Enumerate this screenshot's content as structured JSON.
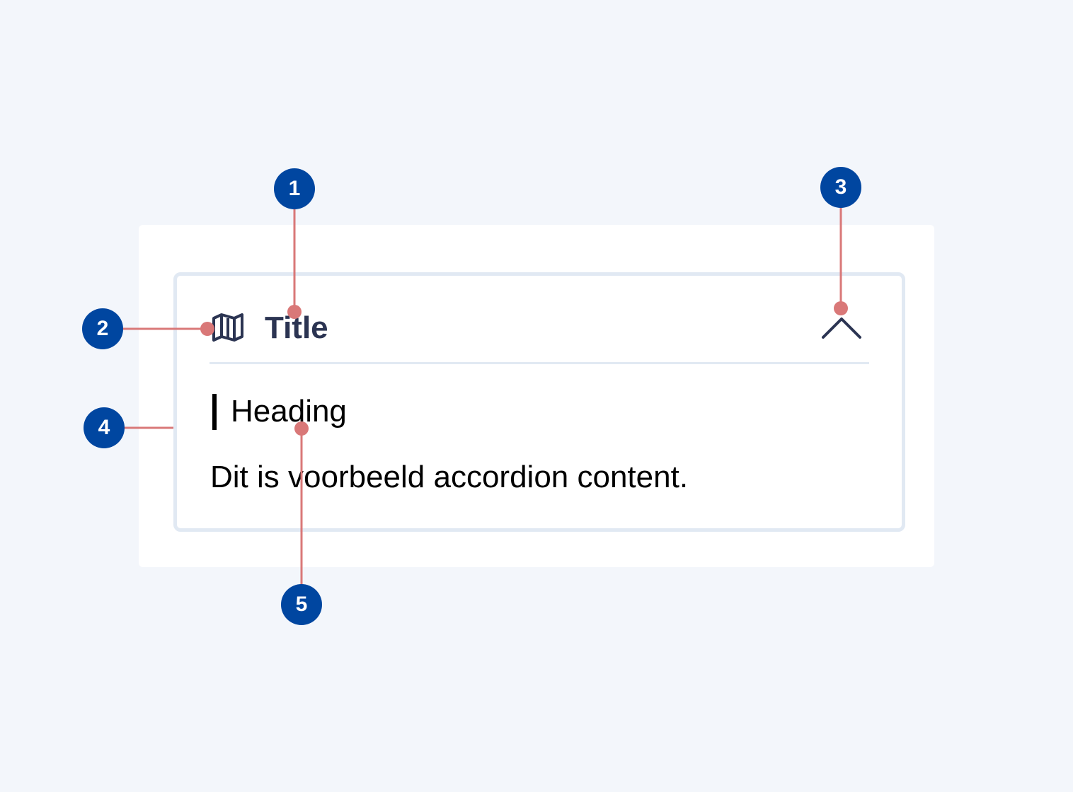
{
  "accordion": {
    "title": "Title",
    "title_icon": "map-icon",
    "toggle_icon": "chevron-up-icon",
    "heading": "Heading",
    "content": "Dit is voorbeeld accordion content."
  },
  "annotations": [
    {
      "label": "1",
      "target": "title"
    },
    {
      "label": "2",
      "target": "icon"
    },
    {
      "label": "3",
      "target": "chevron"
    },
    {
      "label": "4",
      "target": "container"
    },
    {
      "label": "5",
      "target": "content"
    }
  ],
  "colors": {
    "page_background": "#f3f6fb",
    "panel": "#ffffff",
    "border": "#e1e9f3",
    "title_text": "#2b3452",
    "badge": "#0046a0",
    "leader_line": "#d97878"
  }
}
